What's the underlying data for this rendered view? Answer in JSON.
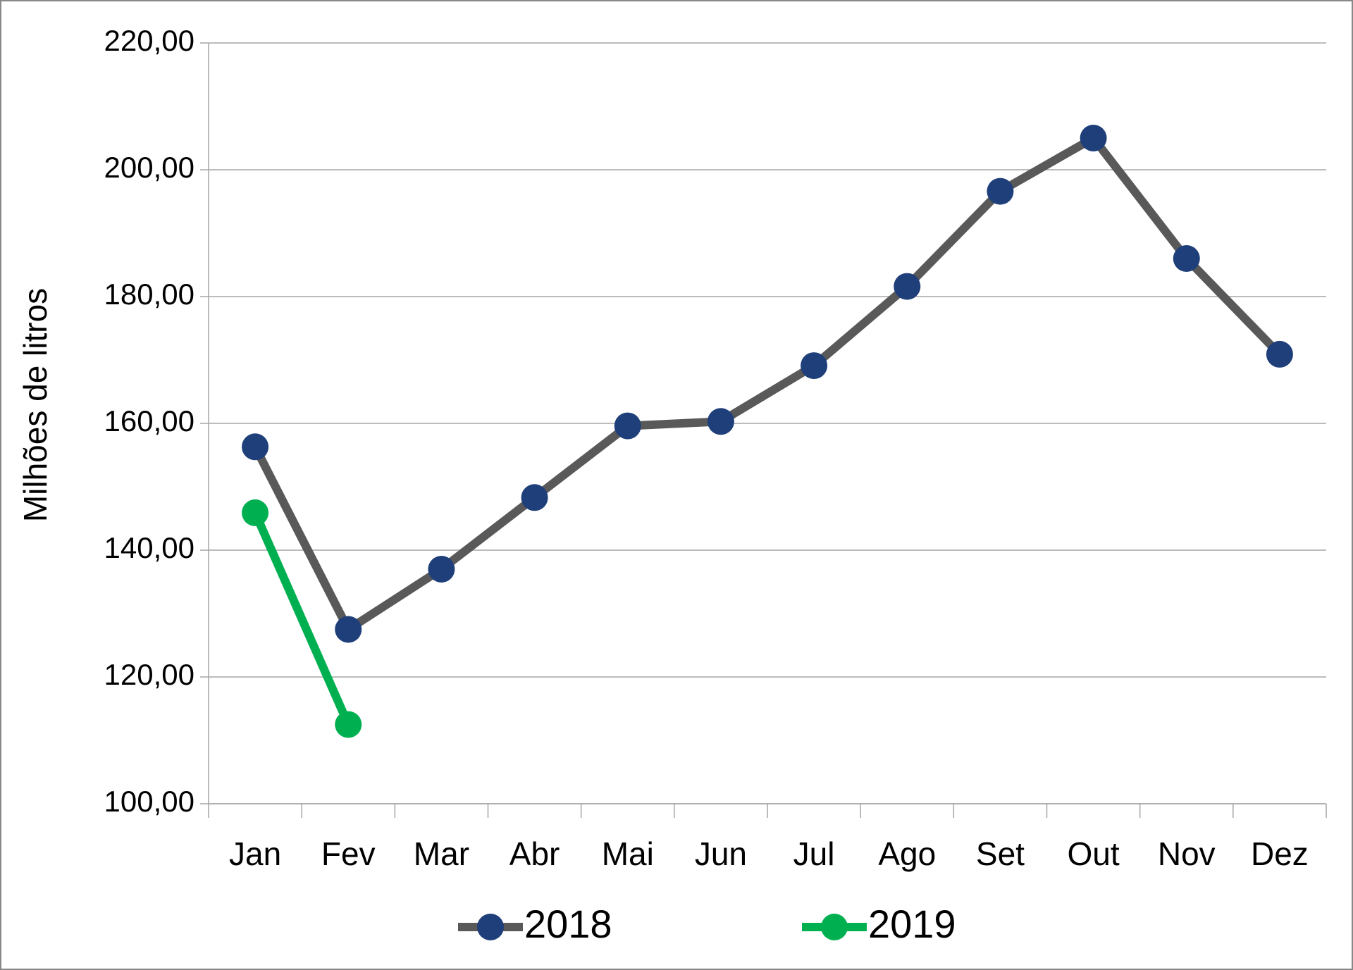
{
  "chart_data": {
    "type": "line",
    "y_label": "Milhões de litros",
    "categories": [
      "Jan",
      "Fev",
      "Mar",
      "Abr",
      "Mai",
      "Jun",
      "Jul",
      "Ago",
      "Set",
      "Out",
      "Nov",
      "Dez"
    ],
    "series": [
      {
        "name": "2018",
        "color": "#595959",
        "marker_color": "#1f3f7a",
        "values": [
          156.3,
          127.5,
          137.0,
          148.3,
          159.6,
          160.3,
          169.1,
          181.6,
          196.6,
          205.0,
          186.0,
          170.9
        ]
      },
      {
        "name": "2019",
        "color": "#00b050",
        "marker_color": "#00b050",
        "values": [
          145.9,
          112.5,
          null,
          null,
          null,
          null,
          null,
          null,
          null,
          null,
          null,
          null
        ]
      }
    ],
    "ylim": [
      100,
      220
    ],
    "yticks": [
      {
        "value": 100,
        "label": "100,00"
      },
      {
        "value": 120,
        "label": "120,00"
      },
      {
        "value": 140,
        "label": "140,00"
      },
      {
        "value": 160,
        "label": "160,00"
      },
      {
        "value": 180,
        "label": "180,00"
      },
      {
        "value": 200,
        "label": "200,00"
      },
      {
        "value": 220,
        "label": "220,00"
      }
    ],
    "grid": true,
    "legend": "bottom"
  }
}
